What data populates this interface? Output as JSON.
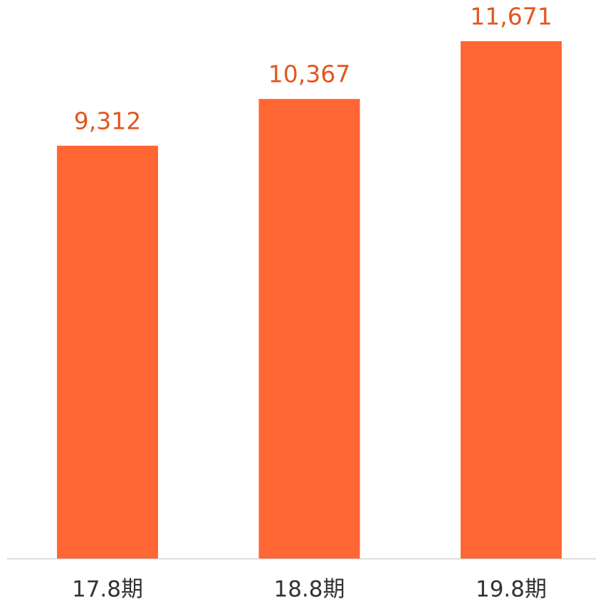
{
  "chart_data": {
    "type": "bar",
    "categories": [
      "17.8期",
      "18.8期",
      "19.8期"
    ],
    "values": [
      9312,
      10367,
      11671
    ],
    "value_labels": [
      "9,312",
      "10,367",
      "11,671"
    ],
    "color": "#ff6633",
    "label_color": "#e2561f",
    "ylim": [
      0,
      12600
    ]
  }
}
